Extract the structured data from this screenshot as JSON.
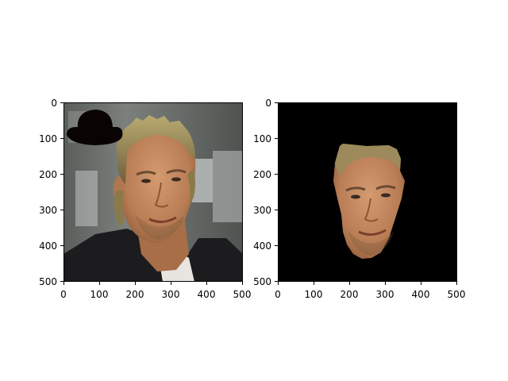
{
  "panels": [
    {
      "id": "left",
      "content": "photo-with-hat",
      "hat_color": "#0a0303",
      "xlim": [
        0,
        500
      ],
      "ylim": [
        500,
        0
      ],
      "x_ticks": [
        "0",
        "100",
        "200",
        "300",
        "400",
        "500"
      ],
      "y_ticks": [
        "0",
        "100",
        "200",
        "300",
        "400",
        "500"
      ]
    },
    {
      "id": "right",
      "content": "face-mask",
      "background_color": "#000000",
      "xlim": [
        0,
        500
      ],
      "ylim": [
        500,
        0
      ],
      "x_ticks": [
        "0",
        "100",
        "200",
        "300",
        "400",
        "500"
      ],
      "y_ticks": [
        "0",
        "100",
        "200",
        "300",
        "400",
        "500"
      ]
    }
  ],
  "colors": {
    "skin": "#c48a62",
    "skin_shadow": "#9a6040",
    "hair": "#a0905a",
    "jacket": "#1c1c1e",
    "shirt": "#e8e4e0",
    "background_gray": "#6f726f",
    "window_light": "#b8bcbc"
  }
}
